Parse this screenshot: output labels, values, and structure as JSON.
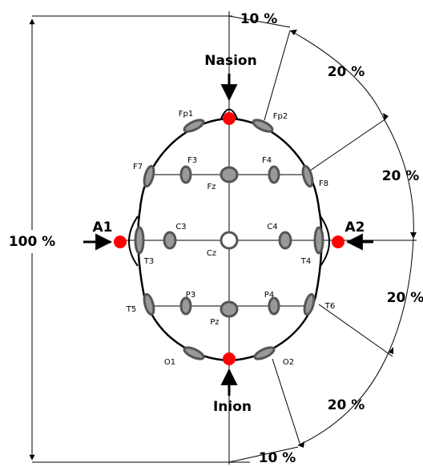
{
  "labels": {
    "nasion": "Nasion",
    "inion": "Inion",
    "a1": "A1",
    "a2": "A2",
    "total": "100 %"
  },
  "percentages": [
    "10 %",
    "20 %",
    "20 %",
    "20 %",
    "20 %",
    "10 %"
  ],
  "electrodes": [
    "Fp1",
    "Fp2",
    "F7",
    "F3",
    "Fz",
    "F4",
    "F8",
    "T3",
    "C3",
    "Cz",
    "C4",
    "T4",
    "T5",
    "P3",
    "Pz",
    "P4",
    "T6",
    "O1",
    "O2"
  ]
}
